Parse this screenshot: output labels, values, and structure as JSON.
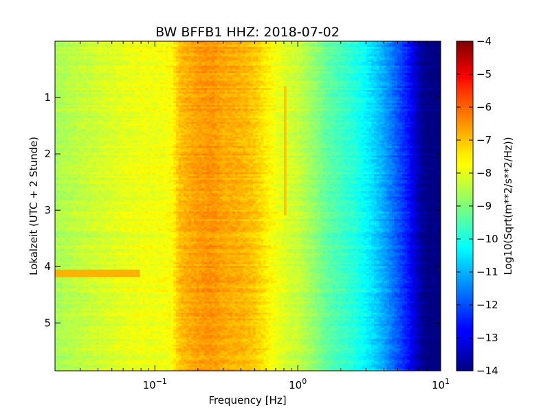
{
  "chart_data": {
    "type": "heatmap",
    "title": "BW BFFB1 HHZ: 2018-07-02",
    "xlabel": "Frequency [Hz]",
    "ylabel": "Lokalzeit (UTC + 2 Stunde)",
    "x_scale": "log",
    "x_range": [
      0.02,
      10
    ],
    "x_ticks": [
      {
        "value": 0.1,
        "base": "10",
        "exp": "−1"
      },
      {
        "value": 1,
        "base": "10",
        "exp": "0"
      },
      {
        "value": 10,
        "base": "10",
        "exp": "1"
      }
    ],
    "y_range": [
      0,
      5.85
    ],
    "y_inverted": true,
    "y_ticks": [
      "1",
      "2",
      "3",
      "4",
      "5"
    ],
    "colorbar": {
      "label": "Log10(Sqrt(m**2/s**2/Hz))",
      "colormap": "jet",
      "min": -14,
      "max": -4,
      "ticks": [
        "−4",
        "−5",
        "−6",
        "−7",
        "−8",
        "−9",
        "−10",
        "−11",
        "−12",
        "−13",
        "−14"
      ]
    },
    "spectrum_profile": {
      "frequency_hz": [
        0.02,
        0.04,
        0.06,
        0.08,
        0.1,
        0.13,
        0.15,
        0.2,
        0.25,
        0.3,
        0.4,
        0.5,
        0.6,
        0.8,
        1.0,
        1.3,
        1.6,
        2.0,
        2.5,
        3.0,
        3.5,
        4.0,
        4.5,
        5.0,
        6.0,
        7.0,
        8.0,
        10.0
      ],
      "value": [
        -8.6,
        -8.2,
        -8.0,
        -7.9,
        -7.9,
        -7.8,
        -7.1,
        -6.8,
        -6.7,
        -6.9,
        -7.0,
        -7.2,
        -7.6,
        -8.1,
        -8.3,
        -8.8,
        -9.3,
        -9.6,
        -9.9,
        -10.3,
        -10.7,
        -11.1,
        -11.5,
        -11.9,
        -12.6,
        -13.5,
        -14.0,
        -14.0
      ]
    },
    "features": [
      {
        "description": "narrow peak",
        "frequency_hz": 0.82,
        "time_from": 0.8,
        "time_to": 3.1,
        "value": -7.2
      },
      {
        "description": "elevated band",
        "frequency_from_hz": 0.02,
        "frequency_to_hz": 0.08,
        "time_from": 4.05,
        "time_to": 4.2,
        "value": -7.0
      }
    ]
  }
}
